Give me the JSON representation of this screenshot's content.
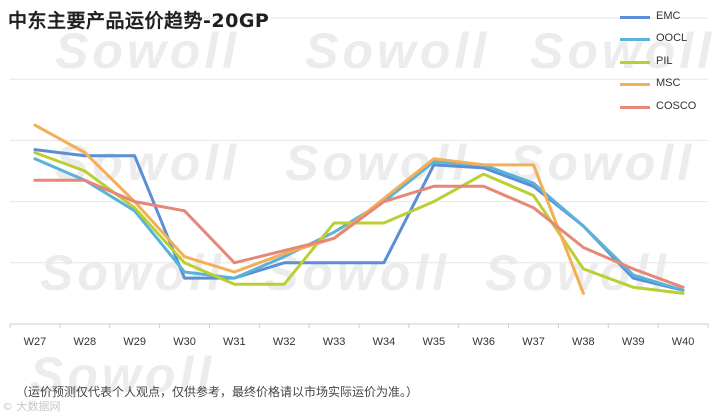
{
  "chart_data": {
    "type": "line",
    "title": "中东主要产品运价趋势-20GP",
    "categories": [
      "W27",
      "W28",
      "W29",
      "W30",
      "W31",
      "W32",
      "W33",
      "W34",
      "W35",
      "W36",
      "W37",
      "W38",
      "W39",
      "W40"
    ],
    "series": [
      {
        "name": "EMC",
        "color": "#5b8ed6",
        "values": [
          57,
          55,
          55,
          15,
          15,
          20,
          20,
          20,
          52,
          51,
          45,
          32,
          15,
          11
        ]
      },
      {
        "name": "OOCL",
        "color": "#59b3d9",
        "values": [
          54,
          47,
          37,
          17,
          15,
          22,
          30,
          40,
          53,
          52,
          46,
          32,
          16,
          11
        ]
      },
      {
        "name": "PIL",
        "color": "#bccf32",
        "values": [
          56,
          50,
          38,
          20,
          13,
          13,
          33,
          33,
          40,
          49,
          42,
          18,
          12,
          10
        ]
      },
      {
        "name": "MSC",
        "color": "#f4ae57",
        "values": [
          65,
          56,
          40,
          22,
          17,
          23,
          28,
          41,
          54,
          52,
          52,
          10,
          null,
          null
        ]
      },
      {
        "name": "COSCO",
        "color": "#e68778",
        "values": [
          47,
          47,
          40,
          37,
          20,
          24,
          28,
          40,
          45,
          45,
          38,
          25,
          18,
          12
        ]
      }
    ],
    "ylim": [
      0,
      100
    ],
    "gridlines": [
      0,
      20,
      40,
      60,
      80,
      100
    ],
    "grid": true,
    "legend": "top-right",
    "watermark": "Sowoll"
  },
  "footnote": "（运价预测仅代表个人观点，仅供参考，最终价格请以市场实际运价为准。）",
  "source": "© 大数据网"
}
